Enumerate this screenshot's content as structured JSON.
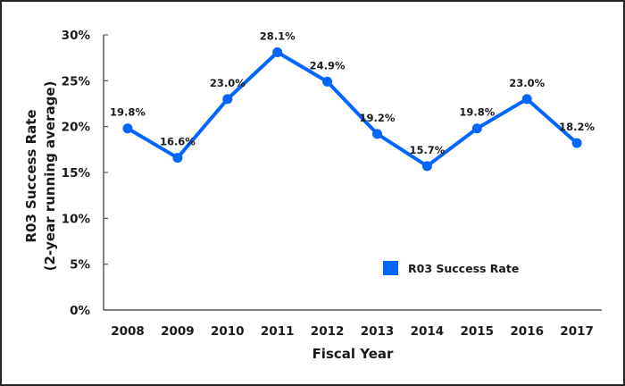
{
  "chart_data": {
    "type": "line",
    "title": "",
    "xlabel": "Fiscal Year",
    "ylabel_lines": [
      "R03 Success Rate",
      "(2-year running average)"
    ],
    "categories": [
      "2008",
      "2009",
      "2010",
      "2011",
      "2012",
      "2013",
      "2014",
      "2015",
      "2016",
      "2017"
    ],
    "series": [
      {
        "name": "R03 Success Rate",
        "color": "#0066ff",
        "values": [
          19.8,
          16.6,
          23.0,
          28.1,
          24.9,
          19.2,
          15.7,
          19.8,
          23.0,
          18.2
        ],
        "labels": [
          "19.8%",
          "16.6%",
          "23.0%",
          "28.1%",
          "24.9%",
          "19.2%",
          "15.7%",
          "19.8%",
          "23.0%",
          "18.2%"
        ]
      }
    ],
    "ylim": [
      0,
      30
    ],
    "yticks": [
      0,
      5,
      10,
      15,
      20,
      25,
      30
    ],
    "ytick_labels": [
      "0%",
      "5%",
      "10%",
      "15%",
      "20%",
      "25%",
      "30%"
    ],
    "grid": false,
    "legend": {
      "position": "bottom-right-inside",
      "entries": [
        "R03 Success Rate"
      ]
    }
  }
}
